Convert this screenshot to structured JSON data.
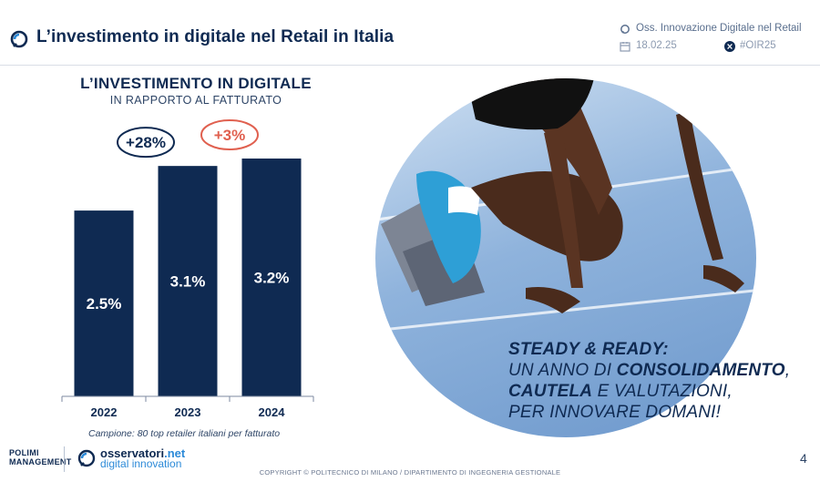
{
  "header": {
    "title": "L’investimento in digitale nel Retail in Italia",
    "source": "Oss. Innovazione Digitale nel Retail",
    "date": "18.02.25",
    "hashtag": "#OIR25"
  },
  "chart_data": {
    "type": "bar",
    "title": "L’INVESTIMENTO IN DIGITALE",
    "subtitle": "IN RAPPORTO AL FATTURATO",
    "categories": [
      "2022",
      "2023",
      "2024"
    ],
    "values": [
      2.5,
      3.1,
      3.2
    ],
    "value_labels": [
      "2.5%",
      "3.1%",
      "3.2%"
    ],
    "ylim": [
      0,
      3.2
    ],
    "grid": false,
    "bar_color": "#0f2a52",
    "annotations": [
      {
        "label": "+28%",
        "between": [
          "2022",
          "2023"
        ],
        "color": "#0f2a52"
      },
      {
        "label": "+3%",
        "between": [
          "2023",
          "2024"
        ],
        "color": "#e0604f"
      }
    ],
    "note": "Campione: 80 top retailer italiani per fatturato"
  },
  "tagline": {
    "line1": "STEADY & READY:",
    "line2_prefix": "UN ANNO DI ",
    "line2_bold": "CONSOLIDAMENTO",
    "line2_suffix": ",",
    "line3_bold": "CAUTELA",
    "line3_suffix": " E VALUTAZIONI,",
    "line4": "PER INNOVARE DOMANI!"
  },
  "footer": {
    "polimi_line1": "POLIMI",
    "polimi_line2": "MANAGEMENT",
    "osservatori_main": "osservatori",
    "osservatori_accent": ".net",
    "osservatori_sub": "digital innovation",
    "copyright": "COPYRIGHT © POLITECNICO DI MILANO / DIPARTIMENTO DI INGEGNERIA GESTIONALE",
    "page_number": "4"
  },
  "colors": {
    "navy": "#0f2a52",
    "accent_red": "#e0604f",
    "accent_blue": "#2c8ad8"
  }
}
